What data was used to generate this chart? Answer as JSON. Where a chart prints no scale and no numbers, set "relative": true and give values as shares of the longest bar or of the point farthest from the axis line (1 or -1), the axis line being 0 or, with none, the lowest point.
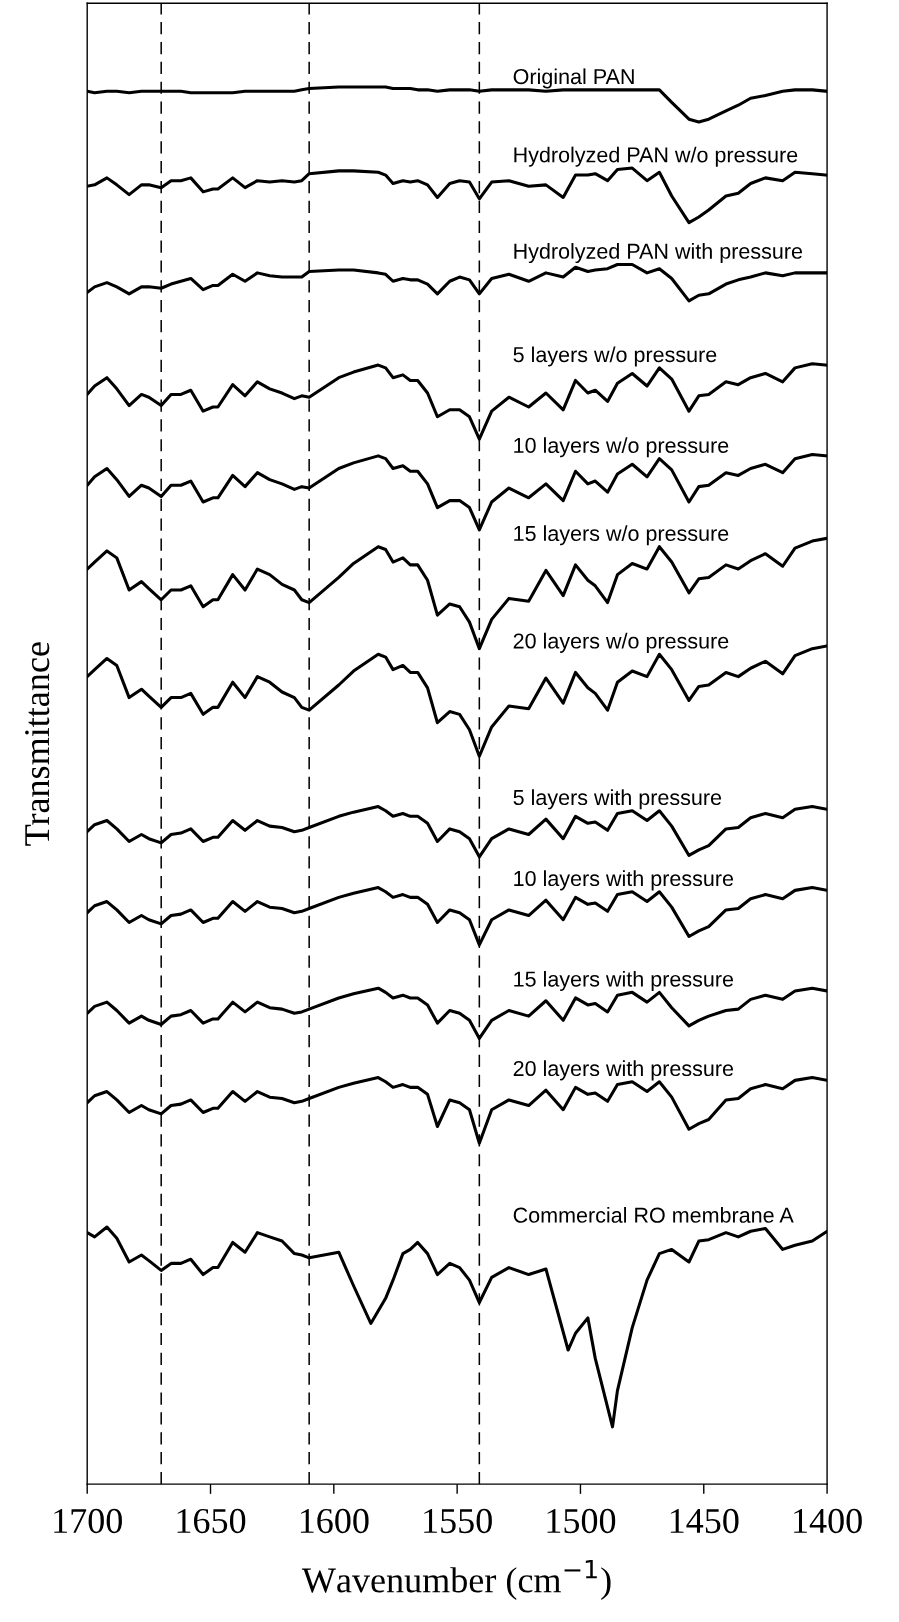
{
  "chart_data": {
    "type": "line",
    "relative": true,
    "xlabel": "Wavenumber (cm$^{−1}$)",
    "ylabel": "Transmittance",
    "xlim": [
      1700,
      1400
    ],
    "xticks": [
      1700,
      1650,
      1600,
      1550,
      1500,
      1450,
      1400
    ],
    "tick_labels": "x",
    "grid": false,
    "legend": false,
    "marker": "none",
    "line_style": "solid",
    "x": [
      1700,
      1697,
      1692,
      1688,
      1683,
      1678,
      1675,
      1670,
      1666,
      1662,
      1658,
      1653,
      1649,
      1647,
      1641,
      1636,
      1631,
      1626,
      1621,
      1616,
      1613,
      1610,
      1598,
      1592,
      1582,
      1579,
      1576,
      1572,
      1569,
      1566,
      1562,
      1558,
      1553,
      1549,
      1545,
      1541,
      1536,
      1529,
      1521,
      1514,
      1507,
      1502,
      1497,
      1494,
      1489,
      1485,
      1479,
      1473,
      1468,
      1463,
      1456,
      1452,
      1448,
      1441,
      1436,
      1431,
      1425,
      1418,
      1413,
      1406,
      1400
    ],
    "ref_lines": [
      {
        "axis": "x",
        "value": 1670,
        "line_style": "dashed",
        "color": "#000000"
      },
      {
        "axis": "x",
        "value": 1610,
        "line_style": "dashed",
        "color": "#000000"
      },
      {
        "axis": "x",
        "value": 1541,
        "line_style": "dashed",
        "color": "#000000"
      }
    ],
    "series": [
      {
        "name": "Original PAN",
        "color": "#000000",
        "values": [
          0.997,
          0.996,
          0.997,
          0.997,
          0.996,
          0.997,
          0.997,
          0.997,
          0.997,
          0.997,
          0.996,
          0.996,
          0.996,
          0.996,
          0.996,
          0.997,
          0.997,
          0.997,
          0.997,
          0.997,
          0.998,
          0.999,
          1.0,
          1.0,
          1.0,
          1.0,
          0.999,
          0.999,
          0.999,
          0.998,
          0.998,
          0.997,
          0.998,
          0.998,
          0.998,
          0.997,
          0.998,
          0.998,
          0.998,
          0.997,
          0.998,
          0.998,
          0.998,
          0.998,
          0.998,
          0.998,
          0.998,
          0.998,
          0.998,
          0.989,
          0.977,
          0.975,
          0.977,
          0.983,
          0.987,
          0.992,
          0.994,
          0.997,
          0.998,
          0.998,
          0.997
        ]
      },
      {
        "name": "Hydrolyzed PAN w/o pressure",
        "color": "#000000",
        "values": [
          0.929,
          0.93,
          0.935,
          0.93,
          0.923,
          0.93,
          0.93,
          0.928,
          0.933,
          0.933,
          0.935,
          0.925,
          0.927,
          0.927,
          0.935,
          0.928,
          0.933,
          0.932,
          0.933,
          0.932,
          0.933,
          0.938,
          0.94,
          0.94,
          0.939,
          0.937,
          0.931,
          0.933,
          0.932,
          0.933,
          0.93,
          0.921,
          0.931,
          0.933,
          0.932,
          0.92,
          0.932,
          0.933,
          0.929,
          0.93,
          0.921,
          0.937,
          0.937,
          0.938,
          0.933,
          0.941,
          0.942,
          0.933,
          0.939,
          0.922,
          0.903,
          0.907,
          0.912,
          0.922,
          0.924,
          0.931,
          0.935,
          0.933,
          0.939,
          0.938,
          0.937
        ]
      },
      {
        "name": "Hydrolyzed PAN with pressure",
        "color": "#000000",
        "values": [
          0.853,
          0.857,
          0.86,
          0.857,
          0.852,
          0.857,
          0.857,
          0.856,
          0.859,
          0.861,
          0.863,
          0.855,
          0.858,
          0.858,
          0.866,
          0.861,
          0.867,
          0.865,
          0.864,
          0.864,
          0.864,
          0.868,
          0.869,
          0.869,
          0.867,
          0.866,
          0.861,
          0.863,
          0.862,
          0.862,
          0.859,
          0.852,
          0.861,
          0.864,
          0.862,
          0.852,
          0.863,
          0.866,
          0.861,
          0.867,
          0.864,
          0.871,
          0.868,
          0.869,
          0.87,
          0.873,
          0.873,
          0.867,
          0.87,
          0.863,
          0.847,
          0.851,
          0.852,
          0.859,
          0.862,
          0.864,
          0.867,
          0.865,
          0.867,
          0.867,
          0.867
        ]
      },
      {
        "name": "5 layers w/o pressure",
        "color": "#000000",
        "values": [
          0.78,
          0.786,
          0.792,
          0.784,
          0.772,
          0.78,
          0.778,
          0.772,
          0.78,
          0.78,
          0.783,
          0.768,
          0.771,
          0.771,
          0.787,
          0.779,
          0.789,
          0.784,
          0.781,
          0.777,
          0.779,
          0.778,
          0.792,
          0.796,
          0.801,
          0.799,
          0.792,
          0.794,
          0.79,
          0.79,
          0.781,
          0.764,
          0.769,
          0.769,
          0.764,
          0.748,
          0.768,
          0.778,
          0.771,
          0.781,
          0.769,
          0.79,
          0.781,
          0.783,
          0.775,
          0.788,
          0.795,
          0.786,
          0.799,
          0.791,
          0.768,
          0.779,
          0.78,
          0.789,
          0.787,
          0.792,
          0.795,
          0.789,
          0.799,
          0.802,
          0.801
        ]
      },
      {
        "name": "10 layers w/o pressure",
        "color": "#000000",
        "values": [
          0.715,
          0.721,
          0.727,
          0.719,
          0.707,
          0.715,
          0.713,
          0.707,
          0.715,
          0.715,
          0.718,
          0.703,
          0.706,
          0.706,
          0.722,
          0.714,
          0.724,
          0.719,
          0.716,
          0.712,
          0.714,
          0.713,
          0.727,
          0.731,
          0.736,
          0.734,
          0.727,
          0.729,
          0.725,
          0.725,
          0.716,
          0.699,
          0.704,
          0.704,
          0.699,
          0.683,
          0.703,
          0.713,
          0.706,
          0.716,
          0.704,
          0.725,
          0.716,
          0.718,
          0.71,
          0.723,
          0.73,
          0.721,
          0.734,
          0.726,
          0.703,
          0.714,
          0.715,
          0.724,
          0.722,
          0.727,
          0.73,
          0.724,
          0.734,
          0.737,
          0.736
        ]
      },
      {
        "name": "15 layers w/o pressure",
        "color": "#000000",
        "values": [
          0.655,
          0.66,
          0.668,
          0.663,
          0.64,
          0.646,
          0.641,
          0.633,
          0.64,
          0.64,
          0.643,
          0.628,
          0.633,
          0.633,
          0.651,
          0.64,
          0.655,
          0.651,
          0.644,
          0.64,
          0.633,
          0.631,
          0.649,
          0.659,
          0.671,
          0.669,
          0.66,
          0.663,
          0.658,
          0.658,
          0.647,
          0.622,
          0.63,
          0.628,
          0.617,
          0.598,
          0.619,
          0.634,
          0.632,
          0.654,
          0.636,
          0.658,
          0.647,
          0.643,
          0.631,
          0.651,
          0.659,
          0.655,
          0.671,
          0.66,
          0.638,
          0.648,
          0.649,
          0.658,
          0.655,
          0.661,
          0.666,
          0.657,
          0.67,
          0.675,
          0.677
        ]
      },
      {
        "name": "20 layers w/o pressure",
        "color": "#000000",
        "values": [
          0.578,
          0.583,
          0.591,
          0.586,
          0.563,
          0.569,
          0.564,
          0.556,
          0.563,
          0.563,
          0.566,
          0.551,
          0.556,
          0.556,
          0.574,
          0.563,
          0.578,
          0.574,
          0.567,
          0.563,
          0.556,
          0.554,
          0.572,
          0.582,
          0.594,
          0.592,
          0.583,
          0.586,
          0.581,
          0.581,
          0.57,
          0.545,
          0.553,
          0.551,
          0.54,
          0.521,
          0.542,
          0.557,
          0.555,
          0.577,
          0.559,
          0.581,
          0.57,
          0.566,
          0.554,
          0.574,
          0.582,
          0.578,
          0.594,
          0.583,
          0.561,
          0.571,
          0.572,
          0.581,
          0.578,
          0.584,
          0.589,
          0.58,
          0.593,
          0.598,
          0.6
        ]
      },
      {
        "name": "5 layers with pressure",
        "color": "#000000",
        "values": [
          0.467,
          0.472,
          0.475,
          0.469,
          0.46,
          0.465,
          0.462,
          0.459,
          0.465,
          0.466,
          0.469,
          0.46,
          0.463,
          0.463,
          0.475,
          0.468,
          0.475,
          0.471,
          0.47,
          0.467,
          0.468,
          0.47,
          0.478,
          0.481,
          0.485,
          0.482,
          0.478,
          0.48,
          0.478,
          0.478,
          0.473,
          0.46,
          0.469,
          0.467,
          0.462,
          0.449,
          0.462,
          0.469,
          0.465,
          0.476,
          0.462,
          0.478,
          0.473,
          0.474,
          0.468,
          0.48,
          0.482,
          0.475,
          0.482,
          0.471,
          0.45,
          0.454,
          0.457,
          0.469,
          0.47,
          0.477,
          0.48,
          0.477,
          0.483,
          0.485,
          0.483
        ]
      },
      {
        "name": "10 layers with pressure",
        "color": "#000000",
        "values": [
          0.409,
          0.414,
          0.417,
          0.411,
          0.402,
          0.407,
          0.404,
          0.401,
          0.407,
          0.408,
          0.411,
          0.402,
          0.405,
          0.405,
          0.417,
          0.41,
          0.417,
          0.413,
          0.412,
          0.409,
          0.41,
          0.412,
          0.42,
          0.423,
          0.427,
          0.424,
          0.42,
          0.422,
          0.42,
          0.42,
          0.415,
          0.402,
          0.411,
          0.409,
          0.404,
          0.386,
          0.404,
          0.411,
          0.407,
          0.418,
          0.404,
          0.42,
          0.415,
          0.416,
          0.41,
          0.422,
          0.424,
          0.417,
          0.424,
          0.413,
          0.392,
          0.396,
          0.399,
          0.411,
          0.412,
          0.419,
          0.422,
          0.419,
          0.425,
          0.427,
          0.425
        ]
      },
      {
        "name": "15 layers with pressure",
        "color": "#000000",
        "values": [
          0.337,
          0.342,
          0.345,
          0.339,
          0.33,
          0.335,
          0.332,
          0.329,
          0.335,
          0.336,
          0.339,
          0.33,
          0.333,
          0.333,
          0.345,
          0.338,
          0.345,
          0.341,
          0.34,
          0.337,
          0.338,
          0.34,
          0.348,
          0.351,
          0.355,
          0.352,
          0.348,
          0.35,
          0.348,
          0.348,
          0.343,
          0.33,
          0.339,
          0.337,
          0.332,
          0.319,
          0.332,
          0.339,
          0.335,
          0.346,
          0.332,
          0.348,
          0.343,
          0.344,
          0.338,
          0.35,
          0.352,
          0.345,
          0.352,
          0.341,
          0.328,
          0.332,
          0.335,
          0.339,
          0.34,
          0.347,
          0.35,
          0.347,
          0.353,
          0.355,
          0.353
        ]
      },
      {
        "name": "20 layers with pressure",
        "color": "#000000",
        "values": [
          0.273,
          0.278,
          0.281,
          0.275,
          0.266,
          0.271,
          0.268,
          0.265,
          0.271,
          0.272,
          0.275,
          0.266,
          0.269,
          0.269,
          0.281,
          0.274,
          0.281,
          0.277,
          0.276,
          0.273,
          0.274,
          0.276,
          0.284,
          0.287,
          0.291,
          0.288,
          0.284,
          0.286,
          0.284,
          0.284,
          0.279,
          0.256,
          0.275,
          0.273,
          0.268,
          0.244,
          0.268,
          0.275,
          0.271,
          0.282,
          0.268,
          0.284,
          0.279,
          0.28,
          0.274,
          0.286,
          0.288,
          0.281,
          0.288,
          0.277,
          0.254,
          0.258,
          0.261,
          0.275,
          0.276,
          0.283,
          0.286,
          0.283,
          0.289,
          0.291,
          0.289
        ]
      },
      {
        "name": "Commercial RO membrane A",
        "color": "#000000",
        "x": [
          1700,
          1697,
          1692,
          1688,
          1683,
          1678,
          1675,
          1670,
          1666,
          1662,
          1658,
          1653,
          1649,
          1647,
          1641,
          1636,
          1631,
          1626,
          1621,
          1616,
          1613,
          1610,
          1598,
          1592,
          1585,
          1579,
          1576,
          1572,
          1569,
          1566,
          1562,
          1558,
          1553,
          1549,
          1545,
          1541,
          1536,
          1529,
          1521,
          1514,
          1505,
          1502,
          1497,
          1494,
          1487,
          1485,
          1479,
          1473,
          1468,
          1463,
          1456,
          1452,
          1448,
          1441,
          1436,
          1431,
          1425,
          1418,
          1413,
          1406,
          1400
        ],
        "values": [
          0.18,
          0.177,
          0.184,
          0.176,
          0.159,
          0.164,
          0.16,
          0.153,
          0.158,
          0.158,
          0.161,
          0.15,
          0.155,
          0.155,
          0.173,
          0.166,
          0.18,
          0.177,
          0.174,
          0.165,
          0.164,
          0.162,
          0.166,
          0.142,
          0.115,
          0.133,
          0.146,
          0.165,
          0.168,
          0.173,
          0.165,
          0.15,
          0.158,
          0.155,
          0.146,
          0.13,
          0.148,
          0.155,
          0.15,
          0.154,
          0.096,
          0.108,
          0.119,
          0.09,
          0.041,
          0.067,
          0.112,
          0.146,
          0.165,
          0.168,
          0.159,
          0.174,
          0.175,
          0.18,
          0.177,
          0.181,
          0.183,
          0.168,
          0.171,
          0.174,
          0.181
        ]
      }
    ]
  }
}
